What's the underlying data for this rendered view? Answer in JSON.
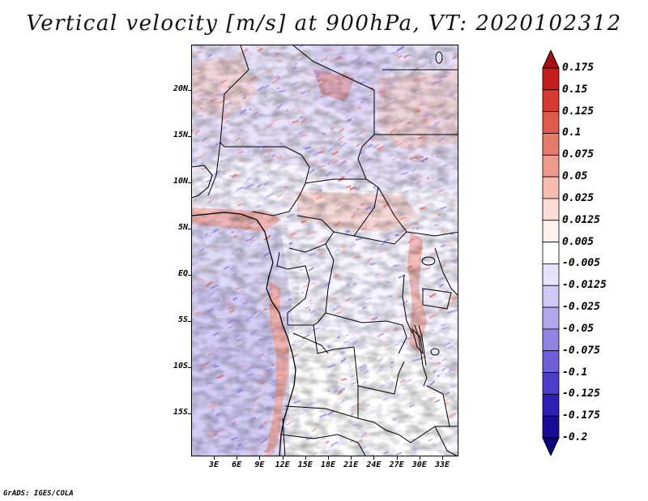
{
  "title": "Vertical velocity [m/s] at 900hPa, VT: 2020102312",
  "map": {
    "lat_ticks": [
      "20N",
      "15N",
      "10N",
      "5N",
      "EQ",
      "5S",
      "10S",
      "15S"
    ],
    "lon_ticks": [
      "3E",
      "6E",
      "9E",
      "12E",
      "15E",
      "18E",
      "21E",
      "24E",
      "27E",
      "30E",
      "33E"
    ]
  },
  "colorbar": {
    "labels": [
      "0.175",
      "0.15",
      "0.125",
      "0.1",
      "0.075",
      "0.05",
      "0.025",
      "0.0125",
      "0.005",
      "-0.005",
      "-0.0125",
      "-0.025",
      "-0.05",
      "-0.075",
      "-0.1",
      "-0.125",
      "-0.175",
      "-0.2"
    ],
    "colors": [
      "#a50f15",
      "#c61d1d",
      "#d83a33",
      "#e05a4c",
      "#e77a6a",
      "#ee9a8c",
      "#f5bcb2",
      "#fbdcd6",
      "#fff1ee",
      "#ffffff",
      "#e6e3fa",
      "#cfc8f5",
      "#b2a7ee",
      "#9183e4",
      "#6f5fd9",
      "#4e3ccb",
      "#2e1fb4",
      "#180c96",
      "#0d0580"
    ]
  },
  "credit": "GrADS: IGES/COLA"
}
